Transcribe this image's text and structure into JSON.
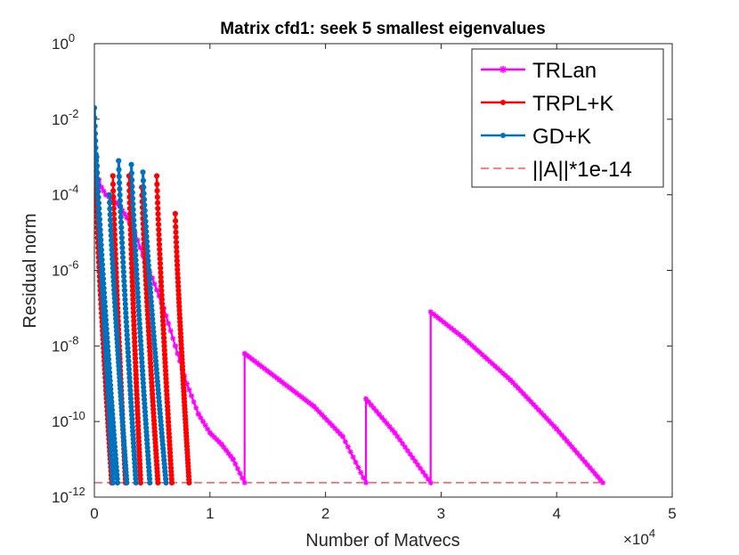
{
  "chart_data": {
    "type": "line",
    "title": "Matrix cfd1: seek 5 smallest eigenvalues",
    "xlabel": "Number of Matvecs",
    "ylabel": "Residual norm",
    "x_exponent_label": "×10",
    "x_exponent_power": "4",
    "xlim": [
      0,
      50000
    ],
    "ylim_log10": [
      -12,
      0
    ],
    "xticks": [
      0,
      1,
      2,
      3,
      4,
      5
    ],
    "yticks": [
      {
        "base": "10",
        "exp": "0",
        "log": 0
      },
      {
        "base": "10",
        "exp": "-2",
        "log": -2
      },
      {
        "base": "10",
        "exp": "-4",
        "log": -4
      },
      {
        "base": "10",
        "exp": "-6",
        "log": -6
      },
      {
        "base": "10",
        "exp": "-8",
        "log": -8
      },
      {
        "base": "10",
        "exp": "-10",
        "log": -10
      },
      {
        "base": "10",
        "exp": "-12",
        "log": -12
      }
    ],
    "legend_position": "top-right",
    "series": [
      {
        "name": "TRLan",
        "color": "#ff00ff",
        "marker": "star",
        "points_log10": [
          [
            0,
            -3.0
          ],
          [
            200,
            -3.4
          ],
          [
            600,
            -3.8
          ],
          [
            1000,
            -4.0
          ],
          [
            1500,
            -4.1
          ],
          [
            2200,
            -4.3
          ],
          [
            2800,
            -4.6
          ],
          [
            3500,
            -5.0
          ],
          [
            4200,
            -5.6
          ],
          [
            5000,
            -6.2
          ],
          [
            6000,
            -7.0
          ],
          [
            7000,
            -8.0
          ],
          [
            8000,
            -9.0
          ],
          [
            9000,
            -9.8
          ],
          [
            10000,
            -10.3
          ],
          [
            11000,
            -10.6
          ],
          [
            12000,
            -11.0
          ],
          [
            13000,
            -11.62
          ],
          [
            13000,
            -8.2
          ],
          [
            16000,
            -8.9
          ],
          [
            19000,
            -9.6
          ],
          [
            21500,
            -10.4
          ],
          [
            23500,
            -11.62
          ],
          [
            23500,
            -9.4
          ],
          [
            26000,
            -10.3
          ],
          [
            29100,
            -11.62
          ],
          [
            29100,
            -7.1
          ],
          [
            32000,
            -7.8
          ],
          [
            36000,
            -8.9
          ],
          [
            40000,
            -10.2
          ],
          [
            44000,
            -11.62
          ]
        ]
      },
      {
        "name": "TRPL+K",
        "color": "#ff0000",
        "marker": "dot",
        "cycles": [
          {
            "start": 0,
            "peak": -3.1,
            "end": 1500
          },
          {
            "start": 1600,
            "peak": -3.5,
            "end": 2700
          },
          {
            "start": 3000,
            "peak": -3.5,
            "end": 4000
          },
          {
            "start": 4100,
            "peak": -3.8,
            "end": 5500
          },
          {
            "start": 5400,
            "peak": -3.5,
            "end": 6700
          },
          {
            "start": 7000,
            "peak": -4.5,
            "end": 8200
          }
        ]
      },
      {
        "name": "GD+K",
        "color": "#0072bd",
        "marker": "dot",
        "cycles": [
          {
            "start": 0,
            "peak": -1.7,
            "end": 1600
          },
          {
            "start": 200,
            "peak": -3.0,
            "end": 2000
          },
          {
            "start": 1300,
            "peak": -4.0,
            "end": 2800
          },
          {
            "start": 2100,
            "peak": -3.1,
            "end": 3600
          },
          {
            "start": 3200,
            "peak": -3.2,
            "end": 4800
          },
          {
            "start": 4200,
            "peak": -3.4,
            "end": 6200
          }
        ]
      },
      {
        "name": "||A||*1e-14",
        "color": "#ff0000",
        "style": "dashed",
        "level_log10": -11.62
      }
    ]
  }
}
